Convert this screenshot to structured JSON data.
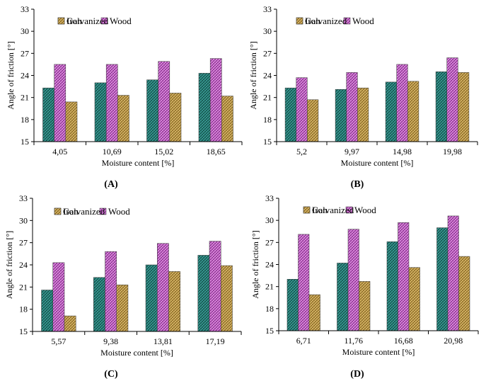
{
  "chart_data": [
    {
      "type": "bar",
      "label": "(A)",
      "categories": [
        "4,05",
        "10,69",
        "15,02",
        "18,65"
      ],
      "series": [
        {
          "name": "Iron",
          "values": [
            22.3,
            23.0,
            23.4,
            24.3
          ]
        },
        {
          "name": "Wood",
          "values": [
            25.5,
            25.5,
            25.9,
            26.3
          ]
        },
        {
          "name": "Galvanized",
          "values": [
            20.4,
            21.3,
            21.6,
            21.2
          ]
        }
      ],
      "xlabel": "Moisture content [%]",
      "ylabel": "Angle of friction [°]",
      "ylim": [
        15,
        33
      ],
      "yticks": [
        "15",
        "18",
        "21",
        "24",
        "27",
        "30",
        "33"
      ],
      "legend_position": "top"
    },
    {
      "type": "bar",
      "label": "(B)",
      "categories": [
        "5,2",
        "9,97",
        "14,98",
        "19,98"
      ],
      "series": [
        {
          "name": "Iron",
          "values": [
            22.3,
            22.1,
            23.1,
            24.5
          ]
        },
        {
          "name": "Wood",
          "values": [
            23.7,
            24.4,
            25.5,
            26.4
          ]
        },
        {
          "name": "Galvanized",
          "values": [
            20.7,
            22.3,
            23.2,
            24.4
          ]
        }
      ],
      "xlabel": "Moisture content [%]",
      "ylabel": "Angle of friction [°]",
      "ylim": [
        15,
        33
      ],
      "yticks": [
        "15",
        "18",
        "21",
        "24",
        "27",
        "30",
        "33"
      ],
      "legend_position": "top"
    },
    {
      "type": "bar",
      "label": "(C)",
      "categories": [
        "5,57",
        "9,38",
        "13,81",
        "17,19"
      ],
      "series": [
        {
          "name": "Iron",
          "values": [
            20.6,
            22.3,
            24.0,
            25.3
          ]
        },
        {
          "name": "Wood",
          "values": [
            24.3,
            25.8,
            26.9,
            27.2
          ]
        },
        {
          "name": "Galvanized",
          "values": [
            17.1,
            21.3,
            23.1,
            23.9
          ]
        }
      ],
      "xlabel": "Moisture content [%]",
      "ylabel": "Angle of friction [°]",
      "ylim": [
        15,
        33
      ],
      "yticks": [
        "15",
        "18",
        "21",
        "24",
        "27",
        "30",
        "33"
      ],
      "legend_position": "top"
    },
    {
      "type": "bar",
      "label": "(D)",
      "categories": [
        "6,71",
        "11,76",
        "16,68",
        "20,98"
      ],
      "series": [
        {
          "name": "Iron",
          "values": [
            22.0,
            24.2,
            27.1,
            29.0
          ]
        },
        {
          "name": "Wood",
          "values": [
            28.1,
            28.8,
            29.7,
            30.6
          ]
        },
        {
          "name": "Galvanized",
          "values": [
            19.9,
            21.7,
            23.6,
            25.1
          ]
        }
      ],
      "xlabel": "Moisture content [%]",
      "ylabel": "Angle of friction [°]",
      "ylim": [
        15,
        33
      ],
      "yticks": [
        "15",
        "18",
        "21",
        "24",
        "27",
        "30",
        "33"
      ],
      "legend_position": "top"
    }
  ],
  "series_colors": {
    "Iron": {
      "base": "#3a9e96",
      "hatch": "#0b3f3b"
    },
    "Wood": {
      "base": "#e08fe2",
      "hatch": "#7a1f80"
    },
    "Galvanized": {
      "base": "#d9b869",
      "hatch": "#7a5a17"
    }
  }
}
